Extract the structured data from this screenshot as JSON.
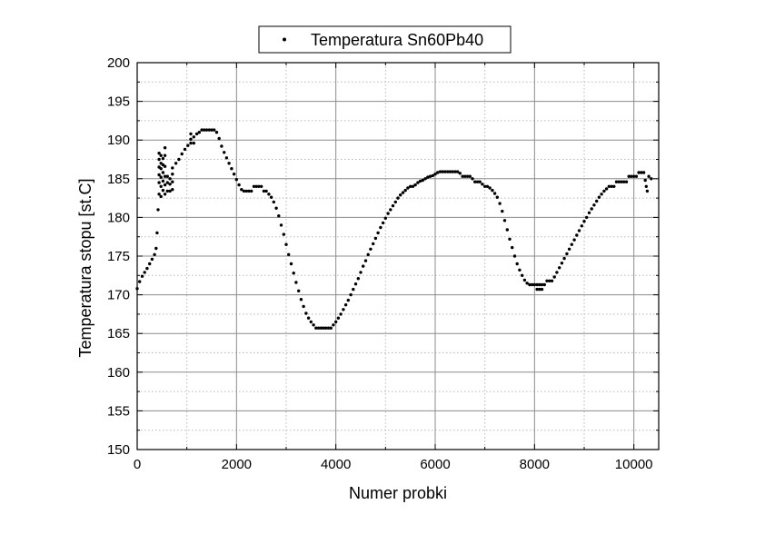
{
  "chart_data": {
    "type": "scatter",
    "title": "",
    "xlabel": "Numer probki",
    "ylabel": "Temperatura stopu [st.C]",
    "xlim": [
      0,
      10500
    ],
    "ylim": [
      150,
      200
    ],
    "x_ticks": [
      0,
      2000,
      4000,
      6000,
      8000,
      10000
    ],
    "y_ticks": [
      150,
      155,
      160,
      165,
      170,
      175,
      180,
      185,
      190,
      195,
      200
    ],
    "grid": true,
    "legend_position": "top-center",
    "marker_color": "#000000",
    "series": [
      {
        "name": "Temperatura Sn60Pb40",
        "points": [
          [
            0,
            170.8
          ],
          [
            50,
            171.7
          ],
          [
            100,
            172.4
          ],
          [
            150,
            172.9
          ],
          [
            200,
            173.4
          ],
          [
            250,
            174.0
          ],
          [
            300,
            174.6
          ],
          [
            350,
            175.2
          ],
          [
            380,
            176.0
          ],
          [
            400,
            178.0
          ],
          [
            420,
            181.0
          ],
          [
            440,
            183.0
          ],
          [
            440,
            184.5
          ],
          [
            440,
            185.5
          ],
          [
            440,
            186.5
          ],
          [
            440,
            187.5
          ],
          [
            440,
            188.3
          ],
          [
            480,
            182.7
          ],
          [
            480,
            184.0
          ],
          [
            480,
            185.2
          ],
          [
            480,
            186.3
          ],
          [
            480,
            187.0
          ],
          [
            480,
            188.0
          ],
          [
            520,
            183.5
          ],
          [
            520,
            184.7
          ],
          [
            520,
            185.8
          ],
          [
            520,
            186.8
          ],
          [
            520,
            187.6
          ],
          [
            560,
            183.0
          ],
          [
            560,
            184.2
          ],
          [
            560,
            185.3
          ],
          [
            560,
            186.6
          ],
          [
            560,
            188.0
          ],
          [
            560,
            189.0
          ],
          [
            610,
            183.4
          ],
          [
            610,
            184.5
          ],
          [
            610,
            185.3
          ],
          [
            660,
            183.4
          ],
          [
            660,
            184.3
          ],
          [
            660,
            185.0
          ],
          [
            710,
            183.6
          ],
          [
            710,
            184.6
          ],
          [
            710,
            185.6
          ],
          [
            710,
            186.4
          ],
          [
            780,
            187.0
          ],
          [
            840,
            187.5
          ],
          [
            900,
            188.2
          ],
          [
            960,
            188.8
          ],
          [
            1020,
            189.3
          ],
          [
            1080,
            189.6
          ],
          [
            1080,
            190.1
          ],
          [
            1080,
            190.8
          ],
          [
            1140,
            189.6
          ],
          [
            1140,
            190.4
          ],
          [
            1200,
            190.8
          ],
          [
            1250,
            191.0
          ],
          [
            1300,
            191.3
          ],
          [
            1350,
            191.3
          ],
          [
            1400,
            191.3
          ],
          [
            1450,
            191.3
          ],
          [
            1500,
            191.3
          ],
          [
            1550,
            191.3
          ],
          [
            1600,
            191.0
          ],
          [
            1650,
            190.2
          ],
          [
            1700,
            189.2
          ],
          [
            1750,
            188.4
          ],
          [
            1800,
            187.7
          ],
          [
            1850,
            187.0
          ],
          [
            1900,
            186.3
          ],
          [
            1950,
            185.6
          ],
          [
            2000,
            184.9
          ],
          [
            2050,
            184.2
          ],
          [
            2100,
            183.6
          ],
          [
            2150,
            183.4
          ],
          [
            2200,
            183.4
          ],
          [
            2250,
            183.4
          ],
          [
            2300,
            183.4
          ],
          [
            2350,
            184.0
          ],
          [
            2400,
            184.0
          ],
          [
            2450,
            184.0
          ],
          [
            2500,
            184.0
          ],
          [
            2550,
            183.4
          ],
          [
            2600,
            183.4
          ],
          [
            2650,
            183.0
          ],
          [
            2700,
            182.6
          ],
          [
            2750,
            182.0
          ],
          [
            2800,
            181.2
          ],
          [
            2850,
            180.2
          ],
          [
            2900,
            179.0
          ],
          [
            2950,
            177.8
          ],
          [
            3000,
            176.5
          ],
          [
            3050,
            175.2
          ],
          [
            3100,
            174.0
          ],
          [
            3150,
            172.8
          ],
          [
            3200,
            171.6
          ],
          [
            3250,
            170.5
          ],
          [
            3300,
            169.4
          ],
          [
            3350,
            168.5
          ],
          [
            3400,
            167.6
          ],
          [
            3450,
            167.0
          ],
          [
            3500,
            166.5
          ],
          [
            3550,
            166.1
          ],
          [
            3600,
            165.7
          ],
          [
            3650,
            165.7
          ],
          [
            3700,
            165.7
          ],
          [
            3750,
            165.7
          ],
          [
            3800,
            165.7
          ],
          [
            3850,
            165.7
          ],
          [
            3900,
            165.7
          ],
          [
            3950,
            166.1
          ],
          [
            4000,
            166.5
          ],
          [
            4050,
            167.0
          ],
          [
            4100,
            167.5
          ],
          [
            4150,
            168.1
          ],
          [
            4200,
            168.7
          ],
          [
            4250,
            169.3
          ],
          [
            4300,
            170.0
          ],
          [
            4350,
            170.7
          ],
          [
            4400,
            171.4
          ],
          [
            4450,
            172.1
          ],
          [
            4500,
            172.9
          ],
          [
            4550,
            173.7
          ],
          [
            4600,
            174.4
          ],
          [
            4650,
            175.2
          ],
          [
            4700,
            175.9
          ],
          [
            4750,
            176.6
          ],
          [
            4800,
            177.3
          ],
          [
            4850,
            178.0
          ],
          [
            4900,
            178.7
          ],
          [
            4950,
            179.3
          ],
          [
            5000,
            179.9
          ],
          [
            5050,
            180.5
          ],
          [
            5100,
            181.0
          ],
          [
            5150,
            181.5
          ],
          [
            5200,
            182.0
          ],
          [
            5250,
            182.5
          ],
          [
            5300,
            182.9
          ],
          [
            5350,
            183.2
          ],
          [
            5400,
            183.5
          ],
          [
            5450,
            183.8
          ],
          [
            5500,
            184.0
          ],
          [
            5550,
            184.0
          ],
          [
            5600,
            184.2
          ],
          [
            5650,
            184.5
          ],
          [
            5700,
            184.7
          ],
          [
            5750,
            184.8
          ],
          [
            5800,
            185.0
          ],
          [
            5850,
            185.2
          ],
          [
            5900,
            185.3
          ],
          [
            5950,
            185.4
          ],
          [
            6000,
            185.6
          ],
          [
            6050,
            185.8
          ],
          [
            6100,
            185.9
          ],
          [
            6150,
            185.9
          ],
          [
            6200,
            185.9
          ],
          [
            6250,
            185.9
          ],
          [
            6300,
            185.9
          ],
          [
            6350,
            185.9
          ],
          [
            6400,
            185.9
          ],
          [
            6450,
            185.9
          ],
          [
            6500,
            185.7
          ],
          [
            6550,
            185.3
          ],
          [
            6600,
            185.3
          ],
          [
            6650,
            185.3
          ],
          [
            6700,
            185.3
          ],
          [
            6750,
            185.0
          ],
          [
            6800,
            184.6
          ],
          [
            6850,
            184.6
          ],
          [
            6900,
            184.6
          ],
          [
            6950,
            184.3
          ],
          [
            7000,
            184.0
          ],
          [
            7050,
            184.0
          ],
          [
            7100,
            183.8
          ],
          [
            7150,
            183.5
          ],
          [
            7200,
            183.1
          ],
          [
            7250,
            182.6
          ],
          [
            7300,
            181.8
          ],
          [
            7350,
            180.8
          ],
          [
            7400,
            179.6
          ],
          [
            7450,
            178.4
          ],
          [
            7500,
            177.2
          ],
          [
            7550,
            176.1
          ],
          [
            7600,
            175.0
          ],
          [
            7650,
            174.0
          ],
          [
            7700,
            173.2
          ],
          [
            7750,
            172.5
          ],
          [
            7800,
            171.9
          ],
          [
            7850,
            171.5
          ],
          [
            7900,
            171.3
          ],
          [
            7950,
            171.3
          ],
          [
            8000,
            171.3
          ],
          [
            8050,
            171.3
          ],
          [
            8100,
            171.3
          ],
          [
            8150,
            171.3
          ],
          [
            8200,
            171.3
          ],
          [
            8050,
            170.7
          ],
          [
            8100,
            170.7
          ],
          [
            8150,
            170.7
          ],
          [
            8250,
            171.8
          ],
          [
            8300,
            171.8
          ],
          [
            8350,
            171.8
          ],
          [
            8400,
            172.3
          ],
          [
            8450,
            172.9
          ],
          [
            8500,
            173.5
          ],
          [
            8550,
            174.1
          ],
          [
            8600,
            174.7
          ],
          [
            8650,
            175.3
          ],
          [
            8700,
            175.9
          ],
          [
            8750,
            176.5
          ],
          [
            8800,
            177.1
          ],
          [
            8850,
            177.7
          ],
          [
            8900,
            178.3
          ],
          [
            8950,
            178.9
          ],
          [
            9000,
            179.5
          ],
          [
            9050,
            180.0
          ],
          [
            9100,
            180.6
          ],
          [
            9150,
            181.1
          ],
          [
            9200,
            181.6
          ],
          [
            9250,
            182.1
          ],
          [
            9300,
            182.6
          ],
          [
            9350,
            183.0
          ],
          [
            9400,
            183.4
          ],
          [
            9450,
            183.7
          ],
          [
            9500,
            184.0
          ],
          [
            9550,
            184.0
          ],
          [
            9600,
            184.0
          ],
          [
            9650,
            184.6
          ],
          [
            9700,
            184.6
          ],
          [
            9750,
            184.6
          ],
          [
            9800,
            184.6
          ],
          [
            9850,
            184.6
          ],
          [
            9900,
            185.3
          ],
          [
            9950,
            185.3
          ],
          [
            10000,
            185.3
          ],
          [
            10050,
            185.3
          ],
          [
            10100,
            185.8
          ],
          [
            10150,
            185.8
          ],
          [
            10200,
            185.8
          ],
          [
            10230,
            184.8
          ],
          [
            10250,
            184.0
          ],
          [
            10270,
            183.4
          ],
          [
            10300,
            185.3
          ],
          [
            10350,
            185.0
          ]
        ]
      }
    ]
  }
}
